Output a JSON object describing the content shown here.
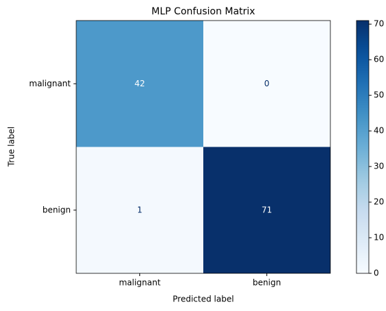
{
  "chart_data": {
    "type": "heatmap",
    "title": "MLP Confusion Matrix",
    "xlabel": "Predicted label",
    "ylabel": "True label",
    "x_categories": [
      "malignant",
      "benign"
    ],
    "y_categories": [
      "malignant",
      "benign"
    ],
    "values": [
      [
        42,
        0
      ],
      [
        1,
        71
      ]
    ],
    "colormap": "Blues",
    "zlim": [
      0,
      71
    ],
    "zticks": [
      0,
      10,
      20,
      30,
      40,
      50,
      60,
      70
    ]
  }
}
